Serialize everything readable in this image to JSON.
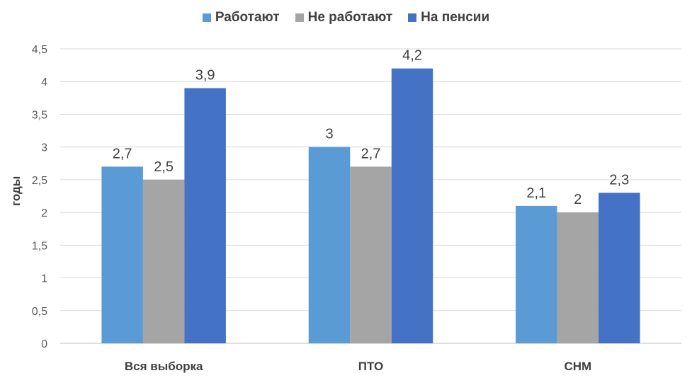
{
  "chart_data": {
    "type": "bar",
    "categories": [
      "Вся выборка",
      "ПТО",
      "СНМ"
    ],
    "series": [
      {
        "name": "Работают",
        "values": [
          2.7,
          3,
          2.1
        ],
        "labels": [
          "2,7",
          "3",
          "2,1"
        ],
        "color": "#5b9bd5"
      },
      {
        "name": "Не работают",
        "values": [
          2.5,
          2.7,
          2
        ],
        "labels": [
          "2,5",
          "2,7",
          "2"
        ],
        "color": "#a5a5a5"
      },
      {
        "name": "На пенсии",
        "values": [
          3.9,
          4.2,
          2.3
        ],
        "labels": [
          "3,9",
          "4,2",
          "2,3"
        ],
        "color": "#4472c4"
      }
    ],
    "ylabel": "годы",
    "ylim": [
      0,
      4.5
    ],
    "yticks": [
      "0",
      "0,5",
      "1",
      "1,5",
      "2",
      "2,5",
      "3",
      "3,5",
      "4",
      "4,5"
    ],
    "grid": true,
    "legend_position": "top"
  }
}
